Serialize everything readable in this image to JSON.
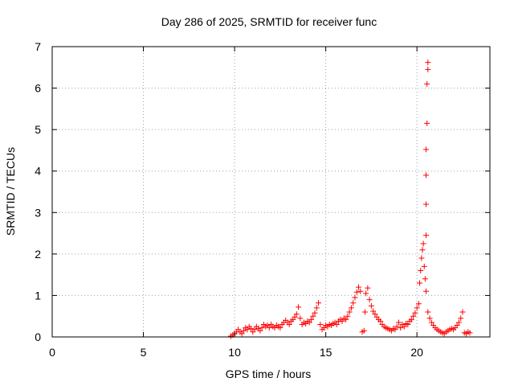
{
  "chart_data": {
    "type": "scatter",
    "title": "Day 286 of 2025, SRMTID for receiver func",
    "xlabel": "GPS time / hours",
    "ylabel": "SRMTID / TECUs",
    "xlim": [
      0,
      24
    ],
    "ylim": [
      0,
      7
    ],
    "x_ticks": [
      "0",
      "5",
      "10",
      "15",
      "20"
    ],
    "y_ticks": [
      "0",
      "1",
      "2",
      "3",
      "4",
      "5",
      "6",
      "7"
    ],
    "grid": true,
    "marker": "+",
    "color": "#ff0000",
    "series": [
      {
        "points": [
          [
            9.8,
            0.02
          ],
          [
            9.9,
            0.05
          ],
          [
            10.0,
            0.08
          ],
          [
            10.1,
            0.12
          ],
          [
            10.2,
            0.18
          ],
          [
            10.3,
            0.12
          ],
          [
            10.4,
            0.08
          ],
          [
            10.5,
            0.15
          ],
          [
            10.6,
            0.22
          ],
          [
            10.7,
            0.18
          ],
          [
            10.8,
            0.25
          ],
          [
            10.9,
            0.2
          ],
          [
            11.0,
            0.12
          ],
          [
            11.1,
            0.18
          ],
          [
            11.2,
            0.25
          ],
          [
            11.3,
            0.2
          ],
          [
            11.4,
            0.15
          ],
          [
            11.5,
            0.22
          ],
          [
            11.6,
            0.3
          ],
          [
            11.7,
            0.25
          ],
          [
            11.8,
            0.28
          ],
          [
            11.9,
            0.22
          ],
          [
            12.0,
            0.3
          ],
          [
            12.1,
            0.25
          ],
          [
            12.2,
            0.22
          ],
          [
            12.3,
            0.28
          ],
          [
            12.4,
            0.25
          ],
          [
            12.5,
            0.22
          ],
          [
            12.6,
            0.3
          ],
          [
            12.7,
            0.35
          ],
          [
            12.8,
            0.4
          ],
          [
            12.9,
            0.35
          ],
          [
            13.0,
            0.3
          ],
          [
            13.1,
            0.38
          ],
          [
            13.2,
            0.42
          ],
          [
            13.3,
            0.48
          ],
          [
            13.4,
            0.55
          ],
          [
            13.5,
            0.72
          ],
          [
            13.6,
            0.45
          ],
          [
            13.7,
            0.3
          ],
          [
            13.8,
            0.35
          ],
          [
            13.9,
            0.32
          ],
          [
            14.0,
            0.38
          ],
          [
            14.1,
            0.35
          ],
          [
            14.2,
            0.42
          ],
          [
            14.3,
            0.5
          ],
          [
            14.4,
            0.58
          ],
          [
            14.5,
            0.7
          ],
          [
            14.6,
            0.82
          ],
          [
            14.7,
            0.3
          ],
          [
            14.8,
            0.18
          ],
          [
            14.9,
            0.22
          ],
          [
            15.0,
            0.28
          ],
          [
            15.1,
            0.25
          ],
          [
            15.2,
            0.3
          ],
          [
            15.3,
            0.28
          ],
          [
            15.4,
            0.32
          ],
          [
            15.5,
            0.35
          ],
          [
            15.6,
            0.3
          ],
          [
            15.7,
            0.38
          ],
          [
            15.8,
            0.42
          ],
          [
            15.9,
            0.38
          ],
          [
            16.0,
            0.45
          ],
          [
            16.1,
            0.42
          ],
          [
            16.2,
            0.5
          ],
          [
            16.3,
            0.6
          ],
          [
            16.4,
            0.7
          ],
          [
            16.5,
            0.82
          ],
          [
            16.6,
            0.95
          ],
          [
            16.7,
            1.08
          ],
          [
            16.8,
            1.2
          ],
          [
            16.9,
            1.1
          ],
          [
            17.0,
            0.12
          ],
          [
            17.1,
            0.15
          ],
          [
            17.15,
            0.6
          ],
          [
            17.2,
            1.05
          ],
          [
            17.3,
            1.18
          ],
          [
            17.4,
            0.9
          ],
          [
            17.5,
            0.75
          ],
          [
            17.6,
            0.62
          ],
          [
            17.7,
            0.55
          ],
          [
            17.8,
            0.48
          ],
          [
            17.9,
            0.42
          ],
          [
            18.0,
            0.38
          ],
          [
            18.1,
            0.3
          ],
          [
            18.2,
            0.25
          ],
          [
            18.3,
            0.22
          ],
          [
            18.4,
            0.2
          ],
          [
            18.5,
            0.18
          ],
          [
            18.6,
            0.15
          ],
          [
            18.7,
            0.2
          ],
          [
            18.8,
            0.18
          ],
          [
            18.9,
            0.25
          ],
          [
            19.0,
            0.35
          ],
          [
            19.1,
            0.22
          ],
          [
            19.2,
            0.3
          ],
          [
            19.3,
            0.25
          ],
          [
            19.4,
            0.32
          ],
          [
            19.5,
            0.3
          ],
          [
            19.6,
            0.38
          ],
          [
            19.7,
            0.42
          ],
          [
            19.8,
            0.5
          ],
          [
            19.9,
            0.58
          ],
          [
            20.0,
            0.7
          ],
          [
            20.1,
            0.8
          ],
          [
            20.15,
            1.3
          ],
          [
            20.2,
            1.6
          ],
          [
            20.25,
            1.9
          ],
          [
            20.3,
            2.1
          ],
          [
            20.35,
            2.25
          ],
          [
            20.4,
            1.7
          ],
          [
            20.45,
            1.4
          ],
          [
            20.5,
            1.1
          ],
          [
            20.5,
            2.45
          ],
          [
            20.5,
            3.2
          ],
          [
            20.5,
            3.9
          ],
          [
            20.5,
            4.52
          ],
          [
            20.55,
            5.15
          ],
          [
            20.55,
            6.1
          ],
          [
            20.6,
            6.45
          ],
          [
            20.6,
            6.62
          ],
          [
            20.6,
            0.6
          ],
          [
            20.7,
            0.45
          ],
          [
            20.8,
            0.35
          ],
          [
            20.9,
            0.28
          ],
          [
            21.0,
            0.22
          ],
          [
            21.1,
            0.18
          ],
          [
            21.2,
            0.15
          ],
          [
            21.3,
            0.12
          ],
          [
            21.4,
            0.1
          ],
          [
            21.5,
            0.08
          ],
          [
            21.6,
            0.12
          ],
          [
            21.7,
            0.15
          ],
          [
            21.8,
            0.18
          ],
          [
            21.9,
            0.2
          ],
          [
            22.0,
            0.18
          ],
          [
            22.1,
            0.22
          ],
          [
            22.2,
            0.28
          ],
          [
            22.3,
            0.35
          ],
          [
            22.4,
            0.45
          ],
          [
            22.5,
            0.6
          ],
          [
            22.6,
            0.1
          ],
          [
            22.7,
            0.08
          ],
          [
            22.8,
            0.12
          ],
          [
            22.9,
            0.1
          ]
        ]
      }
    ]
  }
}
